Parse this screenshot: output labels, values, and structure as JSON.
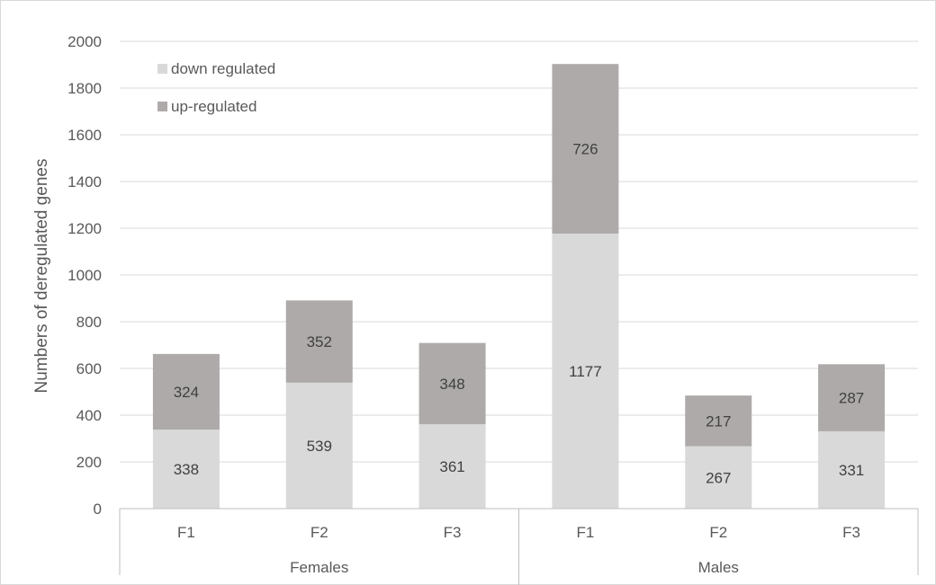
{
  "chart_data": {
    "type": "bar",
    "stacked": true,
    "groups": [
      {
        "name": "Females",
        "categories": [
          "F1",
          "F2",
          "F3"
        ]
      },
      {
        "name": "Males",
        "categories": [
          "F1",
          "F2",
          "F3"
        ]
      }
    ],
    "categories": [
      "F1",
      "F2",
      "F3",
      "F1",
      "F2",
      "F3"
    ],
    "series": [
      {
        "name": "down regulated",
        "color": "#d9d9d9",
        "values": [
          338,
          539,
          361,
          1177,
          267,
          331
        ]
      },
      {
        "name": "up-regulated",
        "color": "#aeaaaa",
        "values": [
          324,
          352,
          348,
          726,
          217,
          287
        ]
      }
    ],
    "ylabel": "Numbers of deregulated genes",
    "xlabel": "",
    "ylim": [
      0,
      2000
    ],
    "yticks": [
      0,
      200,
      400,
      600,
      800,
      1000,
      1200,
      1400,
      1600,
      1800,
      2000
    ],
    "grid": true,
    "legend": "top-left",
    "data_labels": true
  }
}
